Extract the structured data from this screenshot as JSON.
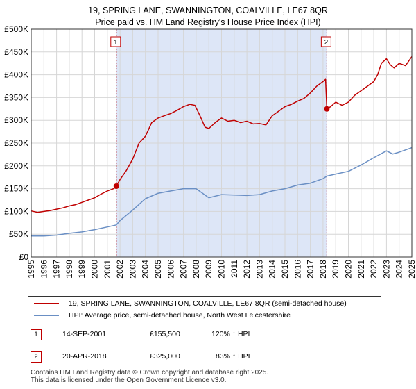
{
  "title_line1": "19, SPRING LANE, SWANNINGTON, COALVILLE, LE67 8QR",
  "title_line2": "Price paid vs. HM Land Registry's House Price Index (HPI)",
  "colors": {
    "property": "#c00000",
    "hpi": "#6a8fc4",
    "shade": "#dde6f7",
    "grid": "#d6d6d6"
  },
  "chart_data": {
    "type": "line",
    "title": "Price paid vs. HM Land Registry's House Price Index (HPI)",
    "xlim": [
      1995,
      2025
    ],
    "ylim": [
      0,
      500000
    ],
    "ytick_values": [
      0,
      50000,
      100000,
      150000,
      200000,
      250000,
      300000,
      350000,
      400000,
      450000,
      500000
    ],
    "ytick_labels": [
      "£0",
      "£50K",
      "£100K",
      "£150K",
      "£200K",
      "£250K",
      "£300K",
      "£350K",
      "£400K",
      "£450K",
      "£500K"
    ],
    "xtick_values": [
      1995,
      1996,
      1997,
      1998,
      1999,
      2000,
      2001,
      2002,
      2003,
      2004,
      2005,
      2006,
      2007,
      2008,
      2009,
      2010,
      2011,
      2012,
      2013,
      2014,
      2015,
      2016,
      2017,
      2018,
      2019,
      2020,
      2021,
      2022,
      2023,
      2024,
      2025
    ],
    "xtick_labels": [
      "1995",
      "1996",
      "1997",
      "1998",
      "1999",
      "2000",
      "2001",
      "2002",
      "2003",
      "2004",
      "2005",
      "2006",
      "2007",
      "2008",
      "2009",
      "2010",
      "2011",
      "2012",
      "2013",
      "2014",
      "2015",
      "2016",
      "2017",
      "2018",
      "2019",
      "2020",
      "2021",
      "2022",
      "2023",
      "2024",
      "2025"
    ],
    "shaded_range": [
      2001.71,
      2018.3
    ],
    "series": [
      {
        "name": "19, SPRING LANE, SWANNINGTON, COALVILLE, LE67 8QR (semi-detached house)",
        "x": [
          1995,
          1995.5,
          1996,
          1996.5,
          1997,
          1997.5,
          1998,
          1998.5,
          1999,
          1999.5,
          2000,
          2000.5,
          2001,
          2001.5,
          2001.71,
          2002,
          2002.5,
          2003,
          2003.5,
          2004,
          2004.5,
          2005,
          2005.5,
          2006,
          2006.5,
          2007,
          2007.5,
          2007.9,
          2008.3,
          2008.7,
          2009,
          2009.5,
          2010,
          2010.5,
          2011,
          2011.5,
          2012,
          2012.5,
          2013,
          2013.5,
          2014,
          2014.5,
          2015,
          2015.5,
          2016,
          2016.5,
          2017,
          2017.5,
          2018,
          2018.2,
          2018.3,
          2018.6,
          2019,
          2019.5,
          2020,
          2020.5,
          2021,
          2021.5,
          2022,
          2022.3,
          2022.6,
          2023,
          2023.3,
          2023.6,
          2024,
          2024.5,
          2025
        ],
        "values": [
          101000,
          98000,
          100000,
          102000,
          105000,
          108000,
          112000,
          115000,
          120000,
          125000,
          130000,
          138000,
          145000,
          150000,
          155500,
          170000,
          190000,
          215000,
          250000,
          265000,
          295000,
          305000,
          310000,
          315000,
          322000,
          330000,
          335000,
          333000,
          310000,
          285000,
          282000,
          295000,
          305000,
          298000,
          300000,
          295000,
          298000,
          292000,
          293000,
          290000,
          310000,
          320000,
          330000,
          335000,
          342000,
          348000,
          360000,
          375000,
          385000,
          390000,
          325000,
          330000,
          340000,
          333000,
          340000,
          355000,
          365000,
          375000,
          385000,
          400000,
          425000,
          435000,
          422000,
          415000,
          425000,
          420000,
          440000
        ]
      },
      {
        "name": "HPI: Average price, semi-detached house, North West Leicestershire",
        "x": [
          1995,
          1996,
          1997,
          1998,
          1999,
          2000,
          2001,
          2001.71,
          2002,
          2003,
          2004,
          2005,
          2006,
          2007,
          2008,
          2009,
          2010,
          2011,
          2012,
          2013,
          2014,
          2015,
          2016,
          2017,
          2018,
          2018.3,
          2019,
          2020,
          2021,
          2022,
          2023,
          2023.5,
          2024,
          2025
        ],
        "values": [
          46000,
          46000,
          48000,
          52000,
          55000,
          60000,
          66000,
          70500,
          80000,
          103000,
          128000,
          140000,
          145000,
          150000,
          150000,
          130000,
          137000,
          136000,
          135000,
          137000,
          145000,
          150000,
          158000,
          162000,
          172000,
          177600,
          182000,
          188000,
          202000,
          218000,
          233000,
          226000,
          230000,
          240000
        ]
      }
    ],
    "annotations": [
      {
        "label": "1",
        "x": 2001.71,
        "y": 155500
      },
      {
        "label": "2",
        "x": 2018.3,
        "y": 325000
      }
    ]
  },
  "legend": {
    "property_label": "19, SPRING LANE, SWANNINGTON, COALVILLE, LE67 8QR (semi-detached house)",
    "hpi_label": "HPI: Average price, semi-detached house, North West Leicestershire"
  },
  "transactions": [
    {
      "num": "1",
      "date": "14-SEP-2001",
      "price": "£155,500",
      "hpi": "120% ↑ HPI"
    },
    {
      "num": "2",
      "date": "20-APR-2018",
      "price": "£325,000",
      "hpi": "83% ↑ HPI"
    }
  ],
  "footer_line1": "Contains HM Land Registry data © Crown copyright and database right 2025.",
  "footer_line2": "This data is licensed under the Open Government Licence v3.0."
}
